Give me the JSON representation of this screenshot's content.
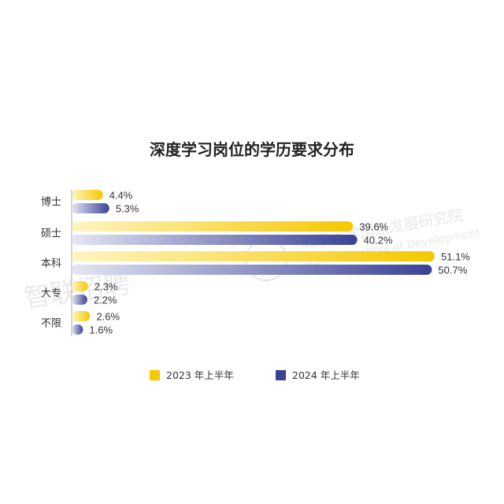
{
  "chart_data": {
    "type": "bar",
    "orientation": "horizontal",
    "title": "深度学习岗位的学历要求分布",
    "categories": [
      "博士",
      "硕士",
      "本科",
      "大专",
      "不限"
    ],
    "series": [
      {
        "name": "2023 年上半年",
        "values": [
          4.4,
          39.6,
          51.1,
          2.3,
          2.6
        ],
        "color": "#f5c800"
      },
      {
        "name": "2024 年上半年",
        "values": [
          5.3,
          40.2,
          50.7,
          2.2,
          1.6
        ],
        "color": "#3a4296"
      }
    ],
    "value_labels": [
      [
        "4.4%",
        "39.6%",
        "51.1%",
        "2.3%",
        "2.6%"
      ],
      [
        "5.3%",
        "40.2%",
        "50.7%",
        "2.2%",
        "1.6%"
      ]
    ],
    "legend_position": "bottom",
    "grid": false,
    "xlim": [
      0,
      55
    ]
  },
  "watermarks": {
    "left": "智联招聘",
    "right_cn": "北京大学国家发展研究院",
    "right_en": "National School of Development"
  }
}
